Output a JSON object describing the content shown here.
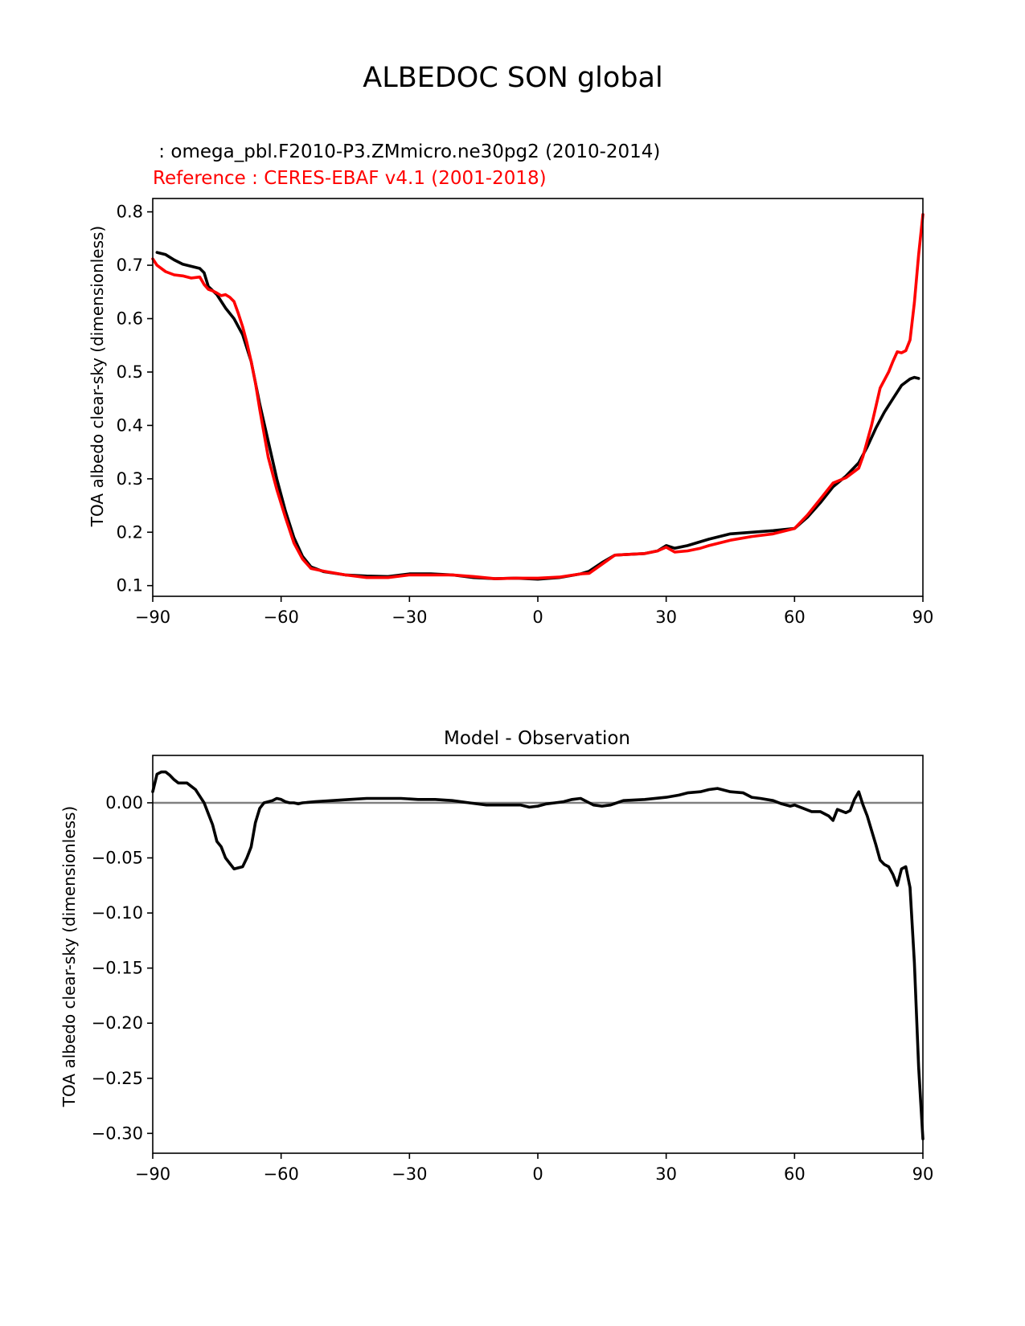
{
  "figure_title": "ALBEDOC SON global",
  "colors": {
    "model": "#000000",
    "reference": "#ff0000",
    "zero_line": "#808080"
  },
  "chart_data": [
    {
      "type": "line",
      "subtitle_model": " : omega_pbl.F2010-P3.ZMmicro.ne30pg2 (2010-2014)",
      "subtitle_reference": "Reference : CERES-EBAF v4.1 (2001-2018)",
      "xlabel": "",
      "ylabel": "TOA albedo clear-sky (dimensionless)",
      "xlim": [
        -90,
        90
      ],
      "ylim": [
        0.08,
        0.825
      ],
      "xticks": [
        -90,
        -60,
        -30,
        0,
        30,
        60,
        90
      ],
      "xtick_labels": [
        "−90",
        "−60",
        "−30",
        "0",
        "30",
        "60",
        "90"
      ],
      "yticks": [
        0.1,
        0.2,
        0.3,
        0.4,
        0.5,
        0.6,
        0.7,
        0.8
      ],
      "ytick_labels": [
        "0.1",
        "0.2",
        "0.3",
        "0.4",
        "0.5",
        "0.6",
        "0.7",
        "0.8"
      ],
      "grid": false,
      "series": [
        {
          "key": "model",
          "x": [
            -89,
            -87,
            -85,
            -83,
            -81,
            -79,
            -78,
            -77,
            -75,
            -73,
            -71,
            -69,
            -67,
            -65,
            -63,
            -61,
            -59,
            -57,
            -55,
            -53,
            -50,
            -45,
            -40,
            -35,
            -30,
            -25,
            -20,
            -15,
            -10,
            -5,
            0,
            5,
            10,
            12,
            15,
            18,
            20,
            25,
            28,
            30,
            32,
            35,
            40,
            45,
            50,
            55,
            60,
            63,
            66,
            69,
            72,
            75,
            77,
            79,
            81,
            83,
            85,
            87,
            88,
            89
          ],
          "y": [
            0.724,
            0.72,
            0.71,
            0.702,
            0.698,
            0.694,
            0.686,
            0.66,
            0.645,
            0.62,
            0.6,
            0.57,
            0.52,
            0.44,
            0.37,
            0.3,
            0.24,
            0.19,
            0.155,
            0.135,
            0.126,
            0.12,
            0.118,
            0.117,
            0.122,
            0.122,
            0.12,
            0.115,
            0.113,
            0.114,
            0.112,
            0.115,
            0.122,
            0.127,
            0.143,
            0.157,
            0.158,
            0.16,
            0.165,
            0.175,
            0.17,
            0.175,
            0.187,
            0.197,
            0.2,
            0.203,
            0.207,
            0.228,
            0.255,
            0.285,
            0.305,
            0.33,
            0.36,
            0.395,
            0.425,
            0.45,
            0.475,
            0.487,
            0.49,
            0.488
          ]
        },
        {
          "key": "reference",
          "x": [
            -90,
            -89,
            -87,
            -85,
            -83,
            -81,
            -79,
            -78,
            -77,
            -76,
            -75,
            -74,
            -73,
            -72,
            -71,
            -70,
            -69,
            -68,
            -67,
            -66,
            -65,
            -63,
            -61,
            -59,
            -57,
            -55,
            -53,
            -50,
            -45,
            -40,
            -35,
            -30,
            -25,
            -20,
            -15,
            -10,
            -5,
            0,
            5,
            10,
            12,
            15,
            18,
            20,
            25,
            28,
            30,
            32,
            35,
            38,
            40,
            45,
            50,
            55,
            60,
            63,
            66,
            69,
            72,
            75,
            76,
            78,
            80,
            82,
            83,
            84,
            85,
            86,
            87,
            88,
            89,
            90
          ],
          "y": [
            0.712,
            0.7,
            0.688,
            0.682,
            0.68,
            0.676,
            0.678,
            0.664,
            0.655,
            0.652,
            0.648,
            0.643,
            0.645,
            0.64,
            0.632,
            0.61,
            0.585,
            0.555,
            0.52,
            0.48,
            0.43,
            0.34,
            0.28,
            0.228,
            0.18,
            0.15,
            0.132,
            0.127,
            0.12,
            0.115,
            0.115,
            0.12,
            0.12,
            0.12,
            0.117,
            0.113,
            0.114,
            0.114,
            0.116,
            0.122,
            0.123,
            0.14,
            0.157,
            0.158,
            0.16,
            0.165,
            0.172,
            0.163,
            0.165,
            0.17,
            0.175,
            0.185,
            0.192,
            0.197,
            0.207,
            0.232,
            0.262,
            0.292,
            0.302,
            0.32,
            0.342,
            0.4,
            0.47,
            0.5,
            0.52,
            0.538,
            0.536,
            0.54,
            0.56,
            0.63,
            0.72,
            0.795
          ]
        }
      ]
    },
    {
      "type": "line",
      "title": "Model - Observation",
      "xlabel": "",
      "ylabel": "TOA albedo clear-sky (dimensionless)",
      "xlim": [
        -90,
        90
      ],
      "ylim": [
        -0.318,
        0.043
      ],
      "xticks": [
        -90,
        -60,
        -30,
        0,
        30,
        60,
        90
      ],
      "xtick_labels": [
        "−90",
        "−60",
        "−30",
        "0",
        "30",
        "60",
        "90"
      ],
      "yticks": [
        0.0,
        -0.05,
        -0.1,
        -0.15,
        -0.2,
        -0.25,
        -0.3
      ],
      "ytick_labels": [
        "0.00",
        "−0.05",
        "−0.10",
        "−0.15",
        "−0.20",
        "−0.25",
        "−0.30"
      ],
      "grid": false,
      "reference_line": 0.0,
      "series": [
        {
          "key": "difference",
          "x": [
            -90,
            -89,
            -88,
            -87,
            -86,
            -85,
            -84,
            -83,
            -82,
            -81,
            -80,
            -79,
            -78,
            -77,
            -76,
            -75,
            -74,
            -73,
            -72,
            -71,
            -70,
            -69,
            -68,
            -67,
            -66,
            -65,
            -64,
            -63,
            -62,
            -61,
            -60,
            -59,
            -58,
            -57,
            -56,
            -55,
            -52,
            -48,
            -44,
            -40,
            -36,
            -32,
            -28,
            -24,
            -20,
            -16,
            -12,
            -8,
            -4,
            -2,
            0,
            2,
            4,
            6,
            8,
            10,
            11,
            13,
            15,
            17,
            20,
            25,
            30,
            33,
            35,
            38,
            40,
            42,
            43,
            45,
            48,
            50,
            52,
            55,
            57,
            59,
            60,
            62,
            64,
            66,
            68,
            69,
            70,
            72,
            73,
            74,
            75,
            76,
            77,
            78,
            79,
            80,
            81,
            82,
            83,
            84,
            85,
            86,
            87,
            88,
            89,
            90
          ],
          "y": [
            0.01,
            0.026,
            0.028,
            0.028,
            0.025,
            0.021,
            0.018,
            0.018,
            0.018,
            0.015,
            0.012,
            0.006,
            0.0,
            -0.01,
            -0.02,
            -0.035,
            -0.04,
            -0.05,
            -0.055,
            -0.06,
            -0.059,
            -0.058,
            -0.05,
            -0.04,
            -0.018,
            -0.005,
            0.0,
            0.001,
            0.002,
            0.004,
            0.003,
            0.001,
            0.0,
            0.0,
            -0.001,
            0.0,
            0.001,
            0.002,
            0.003,
            0.004,
            0.004,
            0.004,
            0.003,
            0.003,
            0.002,
            0.0,
            -0.002,
            -0.002,
            -0.002,
            -0.004,
            -0.003,
            -0.001,
            0.0,
            0.001,
            0.003,
            0.004,
            0.002,
            -0.002,
            -0.003,
            -0.002,
            0.002,
            0.003,
            0.005,
            0.007,
            0.009,
            0.01,
            0.012,
            0.013,
            0.012,
            0.01,
            0.009,
            0.005,
            0.004,
            0.002,
            -0.001,
            -0.003,
            -0.002,
            -0.005,
            -0.008,
            -0.008,
            -0.012,
            -0.016,
            -0.006,
            -0.009,
            -0.007,
            0.003,
            0.01,
            -0.002,
            -0.012,
            -0.025,
            -0.038,
            -0.052,
            -0.056,
            -0.058,
            -0.065,
            -0.075,
            -0.06,
            -0.058,
            -0.077,
            -0.145,
            -0.24,
            -0.305
          ]
        }
      ]
    }
  ]
}
